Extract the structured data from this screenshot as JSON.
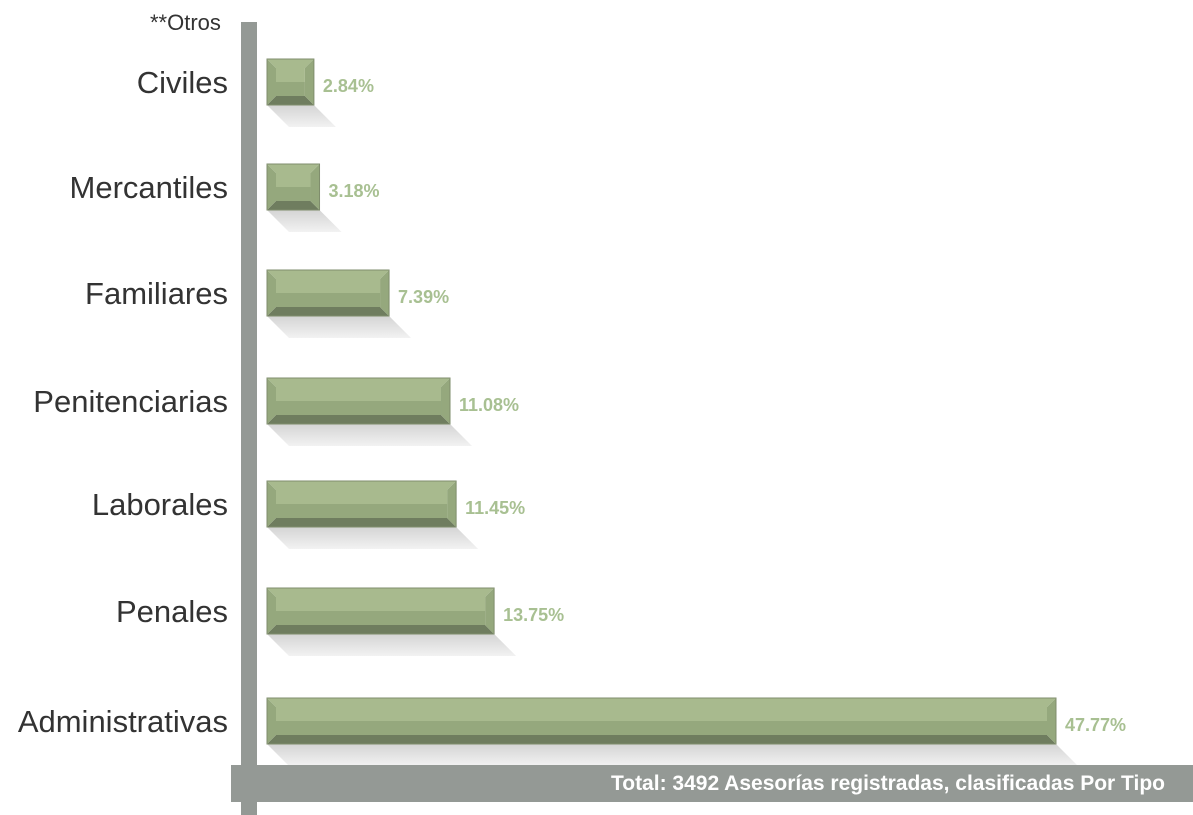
{
  "footnote": "**Otros",
  "total_text": "Total: 3492 Asesorías registradas, clasificadas Por Tipo",
  "colors": {
    "bar_light": "#a8ba8e",
    "bar_mid": "#95a87d",
    "bar_dark": "#6f7d5f",
    "value_label": "#a8c092",
    "axis": "#949995",
    "category_text": "#333333"
  },
  "chart_data": {
    "type": "bar",
    "orientation": "horizontal",
    "categories": [
      "Civiles",
      "Mercantiles",
      "Familiares",
      "Penitenciarias",
      "Laborales",
      "Penales",
      "Administrativas"
    ],
    "values": [
      2.84,
      3.18,
      7.39,
      11.08,
      11.45,
      13.75,
      47.77
    ],
    "value_labels": [
      "2.84%",
      "3.18%",
      "7.39%",
      "11.08%",
      "11.45%",
      "13.75%",
      "47.77%"
    ],
    "title": "",
    "xlabel": "",
    "ylabel": "",
    "xlim": [
      0,
      47.77
    ],
    "grid": false,
    "legend": "none"
  }
}
